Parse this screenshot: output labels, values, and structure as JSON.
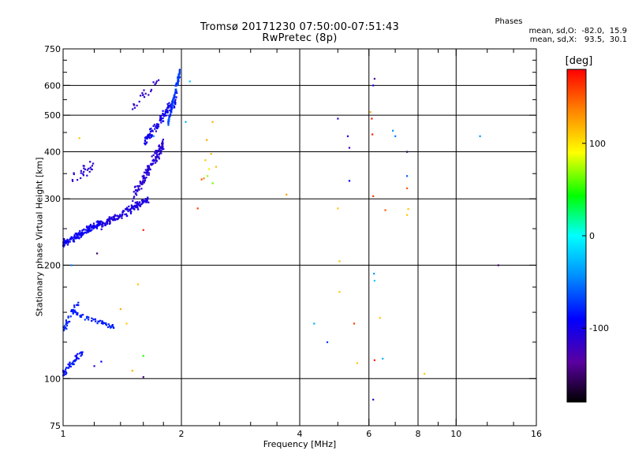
{
  "chart_data": {
    "type": "scatter",
    "title": "Tromsø 20171230 07:50:00-07:51:43",
    "subtitle": "RwPretec (8p)",
    "xlabel": "Frequency [MHz]",
    "ylabel": "Stationary phase Virtual Height [km]",
    "x_scale": "log",
    "y_scale": "log",
    "xlim": [
      1,
      16
    ],
    "ylim": [
      75,
      750
    ],
    "x_ticks": [
      1,
      2,
      4,
      6,
      8,
      10,
      16
    ],
    "x_tick_labels": [
      "1",
      "2",
      "4",
      "6",
      "8",
      "10",
      "16"
    ],
    "y_ticks": [
      75,
      100,
      200,
      300,
      400,
      500,
      600,
      750
    ],
    "y_tick_labels": [
      "75",
      "100",
      "200",
      "300",
      "400",
      "500",
      "600",
      "750"
    ],
    "x_grid": [
      2,
      4,
      6,
      8,
      10
    ],
    "y_grid": [
      100,
      200,
      300,
      400,
      500,
      600
    ],
    "x_minor_ticks": [
      1.2,
      1.4,
      1.6,
      1.8,
      2.5,
      3,
      3.5,
      5,
      7,
      9,
      12,
      14
    ],
    "y_minor_ticks": [
      125,
      150,
      175,
      250,
      350,
      450,
      550,
      650,
      700
    ],
    "stats": {
      "heading": "Phases",
      "line1": "mean, sd,O:  -82.0,  15.9",
      "line2": "mean, sd,X:   93.5,  30.1"
    },
    "colorbar": {
      "label": "[deg]",
      "range": [
        -180,
        180
      ],
      "ticks": [
        100,
        0,
        -100
      ],
      "tick_labels": [
        "100",
        "0",
        "-100"
      ]
    },
    "series": [
      {
        "traces": [
          {
            "x0": 1.0,
            "x1": 1.25,
            "y0": 228,
            "y1": 260,
            "count": 160,
            "spread": 0.035,
            "phase": -95,
            "phase_sd": 12
          },
          {
            "x0": 1.25,
            "x1": 1.65,
            "y0": 255,
            "y1": 300,
            "count": 150,
            "spread": 0.035,
            "phase": -105,
            "phase_sd": 10
          },
          {
            "x0": 1.5,
            "x1": 1.8,
            "y0": 300,
            "y1": 420,
            "count": 130,
            "spread": 0.06,
            "phase": -110,
            "phase_sd": 10
          },
          {
            "x0": 1.6,
            "x1": 1.95,
            "y0": 420,
            "y1": 560,
            "count": 110,
            "spread": 0.05,
            "phase": -100,
            "phase_sd": 14
          },
          {
            "x0": 1.85,
            "x1": 1.98,
            "y0": 480,
            "y1": 650,
            "count": 90,
            "spread": 0.04,
            "phase": -70,
            "phase_sd": 20
          },
          {
            "x0": 1.5,
            "x1": 1.75,
            "y0": 520,
            "y1": 620,
            "count": 22,
            "spread": 0.06,
            "phase": -115,
            "phase_sd": 8
          },
          {
            "x0": 1.05,
            "x1": 1.35,
            "y0": 150,
            "y1": 137,
            "count": 55,
            "spread": 0.025,
            "phase": -80,
            "phase_sd": 15
          },
          {
            "x0": 1.0,
            "x1": 1.1,
            "y0": 135,
            "y1": 160,
            "count": 30,
            "spread": 0.05,
            "phase": -80,
            "phase_sd": 15
          },
          {
            "x0": 1.0,
            "x1": 1.12,
            "y0": 103,
            "y1": 118,
            "count": 45,
            "spread": 0.03,
            "phase": -85,
            "phase_sd": 15
          },
          {
            "x0": 1.04,
            "x1": 1.2,
            "y0": 340,
            "y1": 370,
            "count": 25,
            "spread": 0.06,
            "phase": -110,
            "phase_sd": 10
          }
        ],
        "points": [
          [
            2.3,
            380,
            110
          ],
          [
            2.35,
            360,
            95
          ],
          [
            2.33,
            345,
            70
          ],
          [
            2.38,
            395,
            120
          ],
          [
            2.28,
            340,
            135
          ],
          [
            2.4,
            330,
            60
          ],
          [
            2.45,
            365,
            115
          ],
          [
            2.32,
            430,
            125
          ],
          [
            2.25,
            338,
            150
          ],
          [
            2.4,
            480,
            120
          ],
          [
            2.2,
            283,
            160
          ],
          [
            2.05,
            480,
            -30
          ],
          [
            2.1,
            615,
            -20
          ],
          [
            3.7,
            308,
            125
          ],
          [
            5.0,
            490,
            -110
          ],
          [
            5.05,
            205,
            115
          ],
          [
            5.05,
            170,
            110
          ],
          [
            5.0,
            283,
            110
          ],
          [
            5.3,
            440,
            -100
          ],
          [
            5.35,
            410,
            -120
          ],
          [
            5.35,
            335,
            -90
          ],
          [
            5.5,
            140,
            160
          ],
          [
            5.6,
            110,
            110
          ],
          [
            4.7,
            125,
            -70
          ],
          [
            6.2,
            625,
            -140
          ],
          [
            6.15,
            600,
            -100
          ],
          [
            6.05,
            510,
            120
          ],
          [
            6.1,
            490,
            175
          ],
          [
            6.12,
            445,
            170
          ],
          [
            6.15,
            305,
            160
          ],
          [
            6.18,
            190,
            -40
          ],
          [
            6.2,
            182,
            -20
          ],
          [
            6.2,
            112,
            170
          ],
          [
            6.15,
            88,
            -120
          ],
          [
            6.4,
            145,
            110
          ],
          [
            6.5,
            113,
            -30
          ],
          [
            6.6,
            280,
            150
          ],
          [
            6.9,
            455,
            -40
          ],
          [
            7.0,
            440,
            -50
          ],
          [
            7.5,
            400,
            -160
          ],
          [
            7.5,
            345,
            -60
          ],
          [
            7.5,
            320,
            150
          ],
          [
            7.55,
            282,
            110
          ],
          [
            7.5,
            272,
            110
          ],
          [
            8.3,
            103,
            110
          ],
          [
            11.5,
            440,
            -40
          ],
          [
            12.8,
            200,
            -150
          ],
          [
            4.35,
            140,
            -30
          ],
          [
            1.5,
            105,
            120
          ],
          [
            1.45,
            140,
            110
          ],
          [
            1.55,
            178,
            110
          ],
          [
            1.6,
            115,
            50
          ],
          [
            1.6,
            101,
            -150
          ],
          [
            1.4,
            153,
            120
          ],
          [
            1.2,
            108,
            -110
          ],
          [
            1.25,
            111,
            -90
          ],
          [
            1.1,
            435,
            110
          ],
          [
            1.6,
            248,
            170
          ],
          [
            1.05,
            200,
            -50
          ],
          [
            1.22,
            215,
            -150
          ],
          [
            1.7,
            440,
            -40
          ]
        ]
      }
    ]
  }
}
